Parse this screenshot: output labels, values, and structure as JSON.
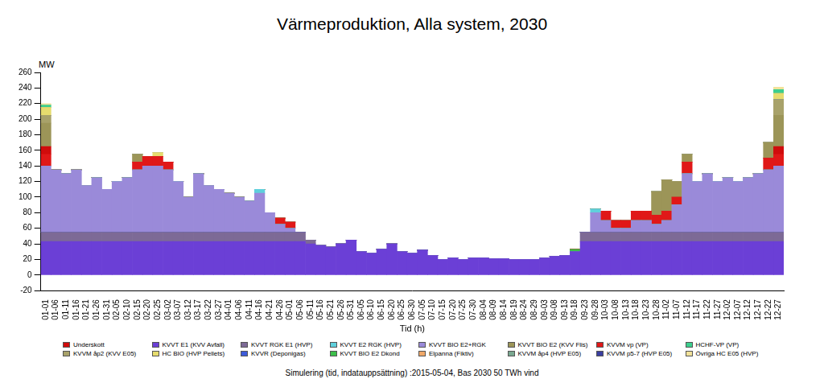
{
  "chart_data": {
    "type": "bar",
    "stacked": true,
    "title": "Värmeproduktion, Alla system, 2030",
    "y_label": "MW",
    "x_label": "Tid (h)",
    "footer": "Simulering (tid, indatauppsättning) :2015-05-04, Bas 2030 50 TWh vind",
    "grid": false,
    "legend": "bottom",
    "ylim": [
      -20,
      260
    ],
    "yticks": [
      -20,
      0,
      20,
      40,
      60,
      80,
      100,
      120,
      140,
      160,
      180,
      200,
      220,
      240,
      260
    ],
    "categories": [
      "01-01",
      "01-06",
      "01-11",
      "01-16",
      "01-21",
      "01-26",
      "01-31",
      "02-05",
      "02-10",
      "02-15",
      "02-20",
      "02-25",
      "03-02",
      "03-07",
      "03-12",
      "03-17",
      "03-22",
      "03-27",
      "04-01",
      "04-06",
      "04-11",
      "04-16",
      "04-21",
      "04-26",
      "05-01",
      "05-06",
      "05-11",
      "05-16",
      "05-21",
      "05-26",
      "05-31",
      "06-05",
      "06-10",
      "06-15",
      "06-20",
      "06-25",
      "06-30",
      "07-05",
      "07-10",
      "07-15",
      "07-20",
      "07-25",
      "07-30",
      "08-04",
      "08-09",
      "08-14",
      "08-19",
      "08-24",
      "08-29",
      "09-03",
      "09-08",
      "09-13",
      "09-18",
      "09-23",
      "09-28",
      "10-03",
      "10-08",
      "10-13",
      "10-18",
      "10-23",
      "10-28",
      "11-02",
      "11-07",
      "11-12",
      "11-17",
      "11-22",
      "11-27",
      "12-02",
      "12-07",
      "12-12",
      "12-17",
      "12-22",
      "12-27"
    ],
    "series": [
      {
        "name": "KVVT E1 (KVV Avfall)",
        "color": "#6b3fd6",
        "values": [
          43,
          43,
          43,
          43,
          43,
          43,
          43,
          43,
          43,
          43,
          43,
          43,
          43,
          43,
          43,
          43,
          43,
          43,
          43,
          43,
          43,
          43,
          43,
          43,
          43,
          43,
          40,
          38,
          36,
          40,
          45,
          30,
          28,
          33,
          40,
          30,
          28,
          32,
          25,
          20,
          22,
          20,
          22,
          22,
          21,
          21,
          20,
          20,
          20,
          22,
          24,
          25,
          30,
          43,
          43,
          43,
          43,
          43,
          43,
          43,
          43,
          43,
          43,
          43,
          43,
          43,
          43,
          43,
          43,
          43,
          43,
          43,
          43
        ]
      },
      {
        "name": "KVVT RGK E1 (HVP)",
        "color": "#7d6a96",
        "values": [
          12,
          12,
          12,
          12,
          12,
          12,
          12,
          12,
          12,
          12,
          12,
          12,
          12,
          12,
          12,
          12,
          12,
          12,
          12,
          12,
          12,
          12,
          12,
          12,
          12,
          12,
          5,
          0,
          0,
          0,
          0,
          0,
          0,
          0,
          0,
          0,
          0,
          0,
          0,
          0,
          0,
          0,
          0,
          0,
          0,
          0,
          0,
          0,
          0,
          0,
          0,
          0,
          0,
          12,
          12,
          12,
          12,
          12,
          12,
          12,
          12,
          12,
          12,
          12,
          12,
          12,
          12,
          12,
          12,
          12,
          12,
          12,
          12
        ]
      },
      {
        "name": "KVVR (Deponigas)",
        "color": "#3d5bd9",
        "values": [
          0,
          0,
          0,
          0,
          0,
          0,
          0,
          0,
          0,
          0,
          0,
          0,
          0,
          0,
          0,
          0,
          0,
          0,
          0,
          0,
          0,
          0,
          0,
          0,
          0,
          0,
          0,
          0,
          0,
          0,
          0,
          0,
          0,
          0,
          0,
          0,
          0,
          0,
          0,
          0,
          0,
          0,
          0,
          0,
          0,
          0,
          0,
          0,
          0,
          0,
          0,
          0,
          0,
          0,
          0,
          0,
          0,
          0,
          0,
          0,
          0,
          0,
          0,
          0,
          0,
          0,
          0,
          0,
          0,
          0,
          0,
          0,
          0
        ]
      },
      {
        "name": "KVVT BIO E2+RGK",
        "color": "#9a8ad9",
        "values": [
          85,
          80,
          75,
          80,
          60,
          70,
          55,
          65,
          70,
          80,
          85,
          85,
          80,
          65,
          45,
          75,
          60,
          55,
          50,
          45,
          40,
          50,
          25,
          10,
          5,
          0,
          0,
          0,
          0,
          0,
          0,
          0,
          0,
          0,
          0,
          0,
          0,
          0,
          0,
          0,
          0,
          0,
          0,
          0,
          0,
          0,
          0,
          0,
          0,
          0,
          0,
          0,
          0,
          0,
          25,
          15,
          5,
          5,
          15,
          15,
          10,
          15,
          35,
          75,
          65,
          75,
          65,
          70,
          65,
          70,
          75,
          80,
          85
        ]
      },
      {
        "name": "KVVT E2 RGK (HVP)",
        "color": "#5fd0dc",
        "values": [
          0,
          0,
          0,
          0,
          0,
          0,
          0,
          0,
          0,
          0,
          0,
          0,
          0,
          0,
          0,
          0,
          0,
          0,
          0,
          0,
          0,
          5,
          0,
          0,
          0,
          0,
          0,
          0,
          0,
          0,
          0,
          0,
          0,
          0,
          0,
          0,
          0,
          0,
          0,
          0,
          0,
          0,
          0,
          0,
          0,
          0,
          0,
          0,
          0,
          0,
          0,
          0,
          0,
          0,
          5,
          0,
          0,
          0,
          0,
          0,
          0,
          0,
          0,
          0,
          0,
          0,
          0,
          0,
          0,
          0,
          0,
          0,
          0
        ]
      },
      {
        "name": "KVVT BIO E2 Dkond",
        "color": "#3cbf4a",
        "values": [
          0,
          0,
          0,
          0,
          0,
          0,
          0,
          0,
          0,
          0,
          0,
          0,
          0,
          0,
          0,
          0,
          0,
          0,
          0,
          0,
          0,
          0,
          0,
          0,
          0,
          0,
          0,
          0,
          0,
          0,
          0,
          0,
          0,
          0,
          0,
          0,
          0,
          0,
          0,
          0,
          0,
          0,
          0,
          0,
          0,
          0,
          0,
          0,
          0,
          0,
          0,
          0,
          3,
          0,
          0,
          0,
          0,
          0,
          0,
          0,
          0,
          0,
          0,
          0,
          0,
          0,
          0,
          0,
          0,
          0,
          0,
          0,
          0
        ]
      },
      {
        "name": "KVVM vp (VP)",
        "color": "#e01818",
        "values": [
          15,
          0,
          0,
          0,
          0,
          0,
          0,
          0,
          0,
          10,
          12,
          12,
          10,
          0,
          0,
          0,
          0,
          0,
          0,
          0,
          0,
          0,
          0,
          8,
          8,
          0,
          0,
          0,
          0,
          0,
          0,
          0,
          0,
          0,
          0,
          0,
          0,
          0,
          0,
          0,
          0,
          0,
          0,
          0,
          0,
          0,
          0,
          0,
          0,
          0,
          0,
          0,
          0,
          0,
          0,
          12,
          10,
          10,
          12,
          12,
          12,
          12,
          10,
          15,
          0,
          0,
          0,
          0,
          0,
          0,
          0,
          15,
          15
        ]
      },
      {
        "name": "Underskott",
        "color": "#d00c0c",
        "values": [
          10,
          0,
          0,
          0,
          0,
          0,
          0,
          0,
          0,
          0,
          0,
          0,
          0,
          0,
          0,
          0,
          0,
          0,
          0,
          0,
          0,
          0,
          0,
          0,
          0,
          0,
          0,
          0,
          0,
          0,
          0,
          0,
          0,
          0,
          0,
          0,
          0,
          0,
          0,
          0,
          0,
          0,
          0,
          0,
          0,
          0,
          0,
          0,
          0,
          0,
          0,
          0,
          0,
          0,
          0,
          0,
          0,
          0,
          0,
          0,
          0,
          0,
          0,
          0,
          0,
          0,
          0,
          0,
          0,
          0,
          0,
          0,
          10
        ]
      },
      {
        "name": "KVVT BIO E2 (KVV Flis)",
        "color": "#9c9558",
        "values": [
          30,
          0,
          0,
          0,
          0,
          0,
          0,
          0,
          0,
          10,
          0,
          0,
          0,
          0,
          0,
          0,
          0,
          0,
          0,
          0,
          0,
          0,
          0,
          0,
          0,
          0,
          0,
          0,
          0,
          0,
          0,
          0,
          0,
          0,
          0,
          0,
          0,
          0,
          0,
          0,
          0,
          0,
          0,
          0,
          0,
          0,
          0,
          0,
          0,
          0,
          0,
          0,
          0,
          0,
          0,
          0,
          0,
          0,
          0,
          0,
          30,
          40,
          20,
          10,
          0,
          0,
          0,
          0,
          0,
          0,
          0,
          20,
          40
        ]
      },
      {
        "name": "KVVM åp2 (KVV E05)",
        "color": "#a8a26a",
        "values": [
          10,
          0,
          0,
          0,
          0,
          0,
          0,
          0,
          0,
          0,
          0,
          0,
          0,
          0,
          0,
          0,
          0,
          0,
          0,
          0,
          0,
          0,
          0,
          0,
          0,
          0,
          0,
          0,
          0,
          0,
          0,
          0,
          0,
          0,
          0,
          0,
          0,
          0,
          0,
          0,
          0,
          0,
          0,
          0,
          0,
          0,
          0,
          0,
          0,
          0,
          0,
          0,
          0,
          0,
          0,
          0,
          0,
          0,
          0,
          0,
          0,
          0,
          0,
          0,
          0,
          0,
          0,
          0,
          0,
          0,
          0,
          0,
          20
        ]
      },
      {
        "name": "KVVM åp4 (HVP E05)",
        "color": "#7aa890",
        "values": [
          0,
          0,
          0,
          0,
          0,
          0,
          0,
          0,
          0,
          0,
          0,
          0,
          0,
          0,
          0,
          0,
          0,
          0,
          0,
          0,
          0,
          0,
          0,
          0,
          0,
          0,
          0,
          0,
          0,
          0,
          0,
          0,
          0,
          0,
          0,
          0,
          0,
          0,
          0,
          0,
          0,
          0,
          0,
          0,
          0,
          0,
          0,
          0,
          0,
          0,
          0,
          0,
          0,
          0,
          0,
          0,
          0,
          0,
          0,
          0,
          0,
          0,
          0,
          0,
          0,
          0,
          0,
          0,
          0,
          0,
          0,
          0,
          0
        ]
      },
      {
        "name": "KVVM p5-7 (HVP E05)",
        "color": "#3b3fa0",
        "values": [
          0,
          0,
          0,
          0,
          0,
          0,
          0,
          0,
          0,
          0,
          0,
          0,
          0,
          0,
          0,
          0,
          0,
          0,
          0,
          0,
          0,
          0,
          0,
          0,
          0,
          0,
          0,
          0,
          0,
          0,
          0,
          0,
          0,
          0,
          0,
          0,
          0,
          0,
          0,
          0,
          0,
          0,
          0,
          0,
          0,
          0,
          0,
          0,
          0,
          0,
          0,
          0,
          0,
          0,
          0,
          0,
          0,
          0,
          0,
          0,
          0,
          0,
          0,
          0,
          0,
          0,
          0,
          0,
          0,
          0,
          0,
          0,
          0
        ]
      },
      {
        "name": "HC BIO (HVP Pellets)",
        "color": "#e6dc6e",
        "values": [
          10,
          0,
          0,
          0,
          0,
          0,
          0,
          0,
          0,
          0,
          0,
          5,
          0,
          0,
          0,
          0,
          0,
          0,
          0,
          0,
          0,
          0,
          0,
          0,
          0,
          0,
          0,
          0,
          0,
          0,
          0,
          0,
          0,
          0,
          0,
          0,
          0,
          0,
          0,
          0,
          0,
          0,
          0,
          0,
          0,
          0,
          0,
          0,
          0,
          0,
          0,
          0,
          0,
          0,
          0,
          0,
          0,
          0,
          0,
          0,
          0,
          0,
          0,
          0,
          0,
          0,
          0,
          0,
          0,
          0,
          0,
          0,
          8
        ]
      },
      {
        "name": "Elpanna (Fiktiv)",
        "color": "#f0a868",
        "values": [
          0,
          0,
          0,
          0,
          0,
          0,
          0,
          0,
          0,
          0,
          0,
          0,
          0,
          0,
          0,
          0,
          0,
          0,
          0,
          0,
          0,
          0,
          0,
          0,
          0,
          0,
          0,
          0,
          0,
          0,
          0,
          0,
          0,
          0,
          0,
          0,
          0,
          0,
          0,
          0,
          0,
          0,
          0,
          0,
          0,
          0,
          0,
          0,
          0,
          0,
          0,
          0,
          0,
          0,
          0,
          0,
          0,
          0,
          0,
          0,
          0,
          0,
          0,
          0,
          0,
          0,
          0,
          0,
          0,
          0,
          0,
          0,
          0
        ]
      },
      {
        "name": "HCHF-VP (VP)",
        "color": "#3ccf8e",
        "values": [
          3,
          0,
          0,
          0,
          0,
          0,
          0,
          0,
          0,
          0,
          0,
          0,
          0,
          0,
          0,
          0,
          0,
          0,
          0,
          0,
          0,
          0,
          0,
          0,
          0,
          0,
          0,
          0,
          0,
          0,
          0,
          0,
          0,
          0,
          0,
          0,
          0,
          0,
          0,
          0,
          0,
          0,
          0,
          0,
          0,
          0,
          0,
          0,
          0,
          0,
          0,
          0,
          0,
          0,
          0,
          0,
          0,
          0,
          0,
          0,
          0,
          0,
          0,
          0,
          0,
          0,
          0,
          0,
          0,
          0,
          0,
          0,
          5
        ]
      },
      {
        "name": "Övriga HC E05 (HVP)",
        "color": "#f2e29a",
        "values": [
          2,
          0,
          0,
          0,
          0,
          0,
          0,
          0,
          0,
          0,
          0,
          0,
          0,
          0,
          0,
          0,
          0,
          0,
          0,
          0,
          0,
          0,
          0,
          0,
          0,
          0,
          0,
          0,
          0,
          0,
          0,
          0,
          0,
          0,
          0,
          0,
          0,
          0,
          0,
          0,
          0,
          0,
          0,
          0,
          0,
          0,
          0,
          0,
          0,
          0,
          0,
          0,
          0,
          0,
          0,
          0,
          0,
          0,
          0,
          0,
          0,
          0,
          0,
          0,
          0,
          0,
          0,
          0,
          0,
          0,
          0,
          0,
          3
        ]
      }
    ]
  }
}
